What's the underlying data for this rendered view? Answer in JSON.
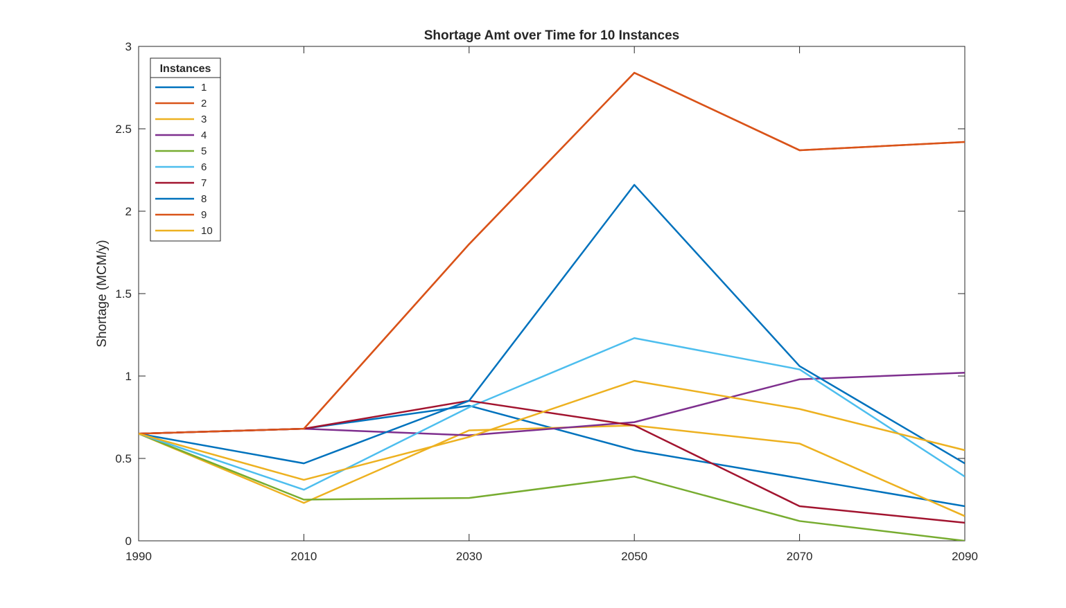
{
  "chart_data": {
    "type": "line",
    "title": "Shortage Amt over Time for 10 Instances",
    "xlabel": "",
    "ylabel": "Shortage (MCM/y)",
    "x": [
      1990,
      2010,
      2030,
      2050,
      2070,
      2090
    ],
    "xticks": [
      "1990",
      "2010",
      "2030",
      "2050",
      "2070",
      "2090"
    ],
    "yticks": [
      "0",
      "0.5",
      "1",
      "1.5",
      "2",
      "2.5",
      "3"
    ],
    "xlim": [
      1990,
      2090
    ],
    "ylim": [
      0,
      3
    ],
    "grid": false,
    "legend": {
      "title": "Instances",
      "placement": "top-left"
    },
    "series": [
      {
        "name": "1",
        "color": "#0072BD",
        "values": [
          0.65,
          0.68,
          0.82,
          0.55,
          0.38,
          0.21
        ]
      },
      {
        "name": "2",
        "color": "#D95319",
        "values": [
          0.65,
          0.68,
          1.8,
          2.84,
          2.37,
          2.42
        ]
      },
      {
        "name": "3",
        "color": "#EDB120",
        "values": [
          0.65,
          0.23,
          0.67,
          0.7,
          0.59,
          0.15
        ]
      },
      {
        "name": "4",
        "color": "#7E2F8E",
        "values": [
          0.65,
          0.68,
          0.64,
          0.72,
          0.98,
          1.02
        ]
      },
      {
        "name": "5",
        "color": "#77AC30",
        "values": [
          0.65,
          0.25,
          0.26,
          0.39,
          0.12,
          0.0
        ]
      },
      {
        "name": "6",
        "color": "#4DBEEE",
        "values": [
          0.65,
          0.31,
          0.81,
          1.23,
          1.04,
          0.39
        ]
      },
      {
        "name": "7",
        "color": "#A2142F",
        "values": [
          0.65,
          0.68,
          0.85,
          0.7,
          0.21,
          0.11
        ]
      },
      {
        "name": "8",
        "color": "#0072BD",
        "values": [
          0.65,
          0.47,
          0.85,
          2.16,
          1.06,
          0.47
        ]
      },
      {
        "name": "9",
        "color": "#D95319",
        "values": [
          0.65,
          0.68,
          1.8,
          2.84,
          2.37,
          2.42
        ]
      },
      {
        "name": "10",
        "color": "#EDB120",
        "values": [
          0.65,
          0.37,
          0.63,
          0.97,
          0.8,
          0.55
        ]
      }
    ]
  }
}
